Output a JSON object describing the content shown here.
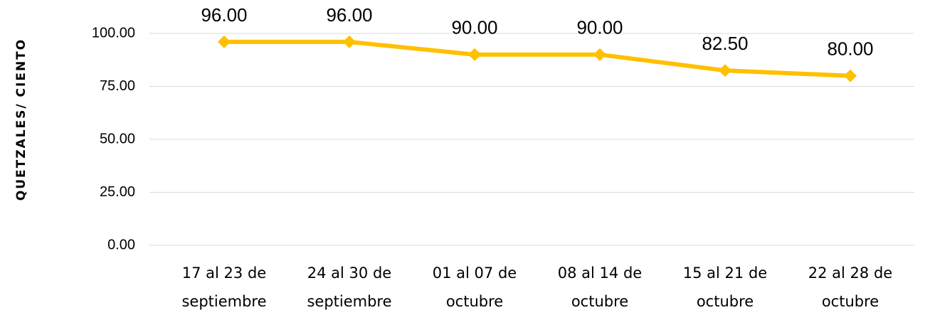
{
  "chart_data": {
    "type": "line",
    "y_label": "QUETZALES/ CIENTO",
    "categories": [
      "17 al 23 de\nseptiembre",
      "24 al 30 de\nseptiembre",
      "01 al 07 de\noctubre",
      "08 al 14 de\noctubre",
      "15 al 21 de\noctubre",
      "22 al 28 de\noctubre"
    ],
    "values": [
      96,
      96,
      90,
      90,
      82.5,
      80
    ],
    "value_labels": [
      "96.00",
      "96.00",
      "90.00",
      "90.00",
      "82.50",
      "80.00"
    ],
    "color": "#FFC000",
    "ylim": [
      0,
      100
    ],
    "yticks": [
      {
        "value": 0,
        "label": "0.00"
      },
      {
        "value": 25,
        "label": "25.00"
      },
      {
        "value": 50,
        "label": "50.00"
      },
      {
        "value": 75,
        "label": "75.00"
      },
      {
        "value": 100,
        "label": "100.00"
      }
    ],
    "grid": true
  }
}
